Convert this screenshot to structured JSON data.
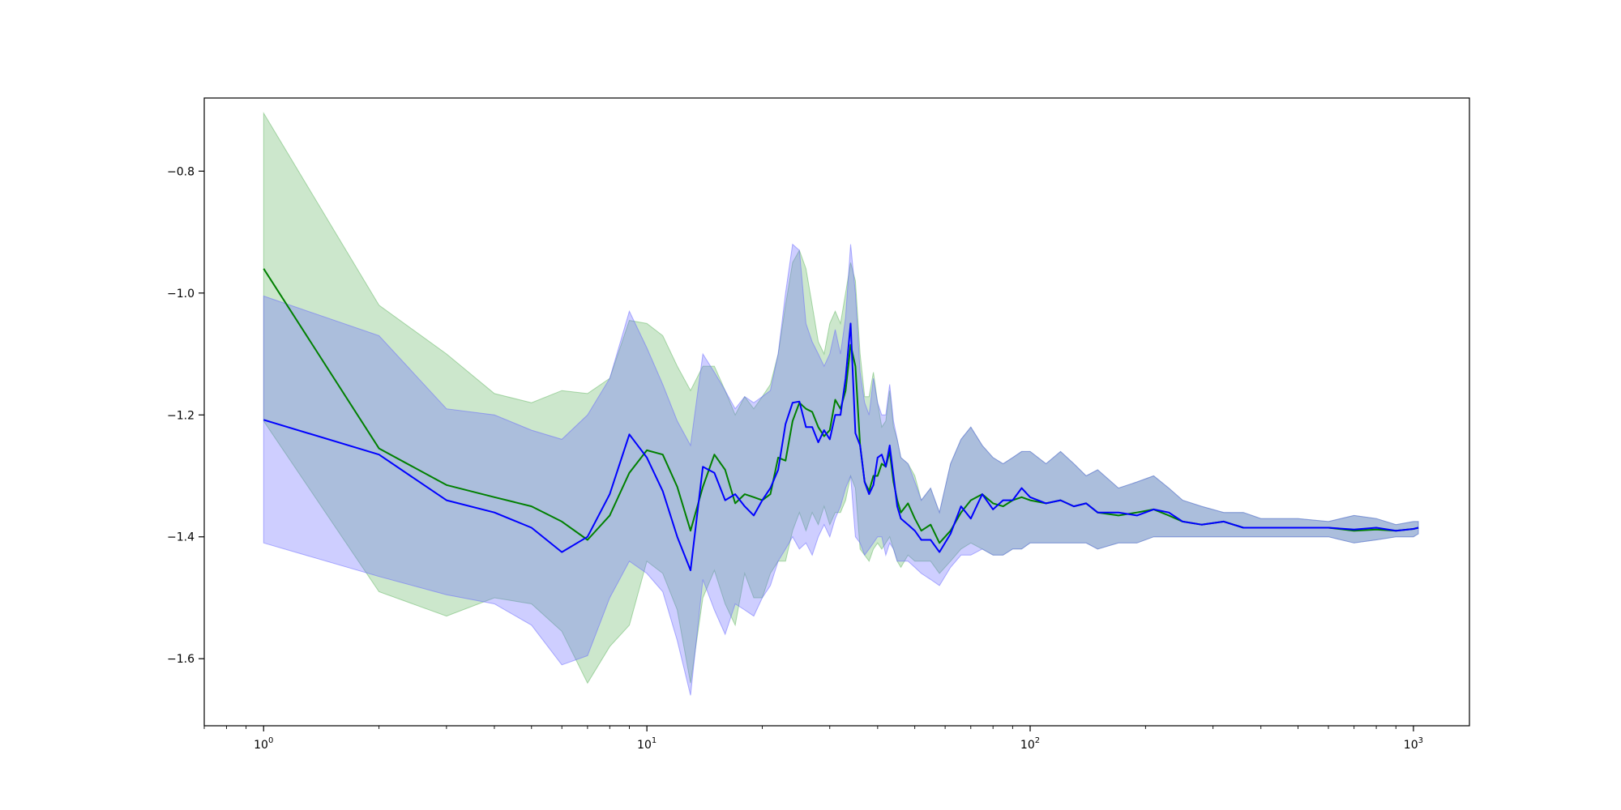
{
  "chart_data": {
    "type": "line",
    "title": "",
    "xlabel": "",
    "ylabel": "",
    "xscale": "log",
    "xlim": [
      0.7,
      1400
    ],
    "ylim": [
      -1.71,
      -0.68
    ],
    "grid": false,
    "x_ticks": [
      {
        "value": 1,
        "base": "10",
        "exp": "0"
      },
      {
        "value": 10,
        "base": "10",
        "exp": "1"
      },
      {
        "value": 100,
        "base": "10",
        "exp": "2"
      },
      {
        "value": 1000,
        "base": "10",
        "exp": "3"
      }
    ],
    "y_ticks": [
      {
        "value": -1.6,
        "label": "−1.6"
      },
      {
        "value": -1.4,
        "label": "−1.4"
      },
      {
        "value": -1.2,
        "label": "−1.2"
      },
      {
        "value": -1.0,
        "label": "−1.0"
      },
      {
        "value": -0.8,
        "label": "−0.8"
      }
    ],
    "colors": {
      "green_line": "#008000",
      "green_band": "#5fb55f",
      "blue_line": "#0000ff",
      "blue_band": "#6666ff"
    },
    "series": [
      {
        "x": [
          1,
          2,
          3,
          4,
          5,
          6,
          7,
          8,
          9,
          10,
          11,
          12,
          13,
          14,
          15,
          16,
          17,
          18,
          19,
          20,
          21,
          22,
          23,
          24,
          25,
          26,
          27,
          28,
          29,
          30,
          31,
          32,
          33,
          34,
          35,
          36,
          37,
          38,
          39,
          40,
          41,
          42,
          43,
          44,
          45,
          46,
          48,
          50,
          52,
          55,
          58,
          62,
          66,
          70,
          75,
          80,
          85,
          90,
          95,
          100,
          110,
          120,
          130,
          140,
          150,
          170,
          190,
          210,
          230,
          250,
          280,
          320,
          360,
          400,
          500,
          600,
          700,
          800,
          900,
          1000,
          1030
        ],
        "y": [
          -0.96,
          -1.255,
          -1.315,
          -1.335,
          -1.35,
          -1.375,
          -1.405,
          -1.365,
          -1.295,
          -1.258,
          -1.265,
          -1.318,
          -1.39,
          -1.318,
          -1.265,
          -1.29,
          -1.345,
          -1.33,
          -1.335,
          -1.34,
          -1.33,
          -1.27,
          -1.275,
          -1.21,
          -1.18,
          -1.19,
          -1.195,
          -1.22,
          -1.235,
          -1.225,
          -1.175,
          -1.19,
          -1.16,
          -1.085,
          -1.12,
          -1.25,
          -1.31,
          -1.325,
          -1.3,
          -1.3,
          -1.28,
          -1.285,
          -1.26,
          -1.31,
          -1.34,
          -1.36,
          -1.345,
          -1.37,
          -1.39,
          -1.38,
          -1.41,
          -1.39,
          -1.36,
          -1.34,
          -1.33,
          -1.345,
          -1.35,
          -1.34,
          -1.335,
          -1.34,
          -1.345,
          -1.34,
          -1.35,
          -1.345,
          -1.36,
          -1.365,
          -1.36,
          -1.355,
          -1.365,
          -1.375,
          -1.38,
          -1.375,
          -1.385,
          -1.385,
          -1.385,
          -1.385,
          -1.39,
          -1.388,
          -1.39,
          -1.387,
          -1.385
        ],
        "lower": [
          -1.21,
          -1.49,
          -1.53,
          -1.5,
          -1.51,
          -1.555,
          -1.64,
          -1.58,
          -1.545,
          -1.44,
          -1.46,
          -1.52,
          -1.64,
          -1.5,
          -1.455,
          -1.51,
          -1.545,
          -1.46,
          -1.5,
          -1.5,
          -1.46,
          -1.44,
          -1.44,
          -1.39,
          -1.36,
          -1.39,
          -1.36,
          -1.38,
          -1.35,
          -1.38,
          -1.36,
          -1.36,
          -1.34,
          -1.3,
          -1.32,
          -1.42,
          -1.43,
          -1.44,
          -1.42,
          -1.41,
          -1.42,
          -1.41,
          -1.4,
          -1.42,
          -1.44,
          -1.45,
          -1.43,
          -1.44,
          -1.44,
          -1.44,
          -1.46,
          -1.44,
          -1.42,
          -1.41,
          -1.42,
          -1.43,
          -1.43,
          -1.42,
          -1.42,
          -1.41,
          -1.41,
          -1.41,
          -1.41,
          -1.41,
          -1.42,
          -1.41,
          -1.41,
          -1.4,
          -1.4,
          -1.4,
          -1.4,
          -1.4,
          -1.4,
          -1.4,
          -1.4,
          -1.4,
          -1.41,
          -1.405,
          -1.4,
          -1.4,
          -1.395
        ],
        "upper": [
          -0.705,
          -1.02,
          -1.1,
          -1.165,
          -1.18,
          -1.16,
          -1.165,
          -1.14,
          -1.045,
          -1.05,
          -1.07,
          -1.12,
          -1.16,
          -1.12,
          -1.12,
          -1.16,
          -1.2,
          -1.17,
          -1.19,
          -1.17,
          -1.15,
          -1.1,
          -1.02,
          -0.95,
          -0.93,
          -0.96,
          -1.02,
          -1.08,
          -1.1,
          -1.05,
          -1.03,
          -1.05,
          -1.0,
          -0.95,
          -0.98,
          -1.1,
          -1.17,
          -1.17,
          -1.13,
          -1.18,
          -1.22,
          -1.21,
          -1.16,
          -1.22,
          -1.24,
          -1.27,
          -1.28,
          -1.3,
          -1.34,
          -1.32,
          -1.36,
          -1.28,
          -1.24,
          -1.22,
          -1.25,
          -1.27,
          -1.28,
          -1.27,
          -1.26,
          -1.26,
          -1.28,
          -1.26,
          -1.28,
          -1.3,
          -1.29,
          -1.32,
          -1.31,
          -1.3,
          -1.32,
          -1.34,
          -1.35,
          -1.36,
          -1.36,
          -1.37,
          -1.37,
          -1.375,
          -1.365,
          -1.37,
          -1.38,
          -1.375,
          -1.375
        ]
      },
      {
        "x": [
          1,
          2,
          3,
          4,
          5,
          6,
          7,
          8,
          9,
          10,
          11,
          12,
          13,
          14,
          15,
          16,
          17,
          18,
          19,
          20,
          21,
          22,
          23,
          24,
          25,
          26,
          27,
          28,
          29,
          30,
          31,
          32,
          33,
          34,
          35,
          36,
          37,
          38,
          39,
          40,
          41,
          42,
          43,
          44,
          45,
          46,
          48,
          50,
          52,
          55,
          58,
          62,
          66,
          70,
          75,
          80,
          85,
          90,
          95,
          100,
          110,
          120,
          130,
          140,
          150,
          170,
          190,
          210,
          230,
          250,
          280,
          320,
          360,
          400,
          500,
          600,
          700,
          800,
          900,
          1000,
          1030
        ],
        "y": [
          -1.208,
          -1.265,
          -1.34,
          -1.36,
          -1.385,
          -1.425,
          -1.4,
          -1.33,
          -1.232,
          -1.27,
          -1.325,
          -1.4,
          -1.455,
          -1.285,
          -1.295,
          -1.34,
          -1.33,
          -1.35,
          -1.365,
          -1.34,
          -1.32,
          -1.29,
          -1.215,
          -1.18,
          -1.178,
          -1.22,
          -1.22,
          -1.245,
          -1.225,
          -1.24,
          -1.2,
          -1.2,
          -1.14,
          -1.05,
          -1.23,
          -1.25,
          -1.31,
          -1.33,
          -1.315,
          -1.27,
          -1.265,
          -1.285,
          -1.25,
          -1.3,
          -1.35,
          -1.37,
          -1.38,
          -1.39,
          -1.405,
          -1.405,
          -1.425,
          -1.395,
          -1.35,
          -1.37,
          -1.33,
          -1.355,
          -1.34,
          -1.34,
          -1.32,
          -1.335,
          -1.345,
          -1.34,
          -1.35,
          -1.345,
          -1.36,
          -1.36,
          -1.365,
          -1.355,
          -1.36,
          -1.375,
          -1.38,
          -1.375,
          -1.385,
          -1.385,
          -1.385,
          -1.385,
          -1.388,
          -1.385,
          -1.39,
          -1.387,
          -1.385
        ],
        "lower": [
          -1.41,
          -1.465,
          -1.495,
          -1.51,
          -1.545,
          -1.61,
          -1.595,
          -1.5,
          -1.44,
          -1.46,
          -1.49,
          -1.57,
          -1.66,
          -1.47,
          -1.52,
          -1.56,
          -1.51,
          -1.52,
          -1.53,
          -1.5,
          -1.48,
          -1.44,
          -1.42,
          -1.4,
          -1.42,
          -1.41,
          -1.43,
          -1.4,
          -1.38,
          -1.4,
          -1.37,
          -1.35,
          -1.32,
          -1.3,
          -1.4,
          -1.41,
          -1.43,
          -1.42,
          -1.41,
          -1.4,
          -1.4,
          -1.43,
          -1.41,
          -1.42,
          -1.44,
          -1.44,
          -1.44,
          -1.45,
          -1.46,
          -1.47,
          -1.48,
          -1.45,
          -1.43,
          -1.43,
          -1.42,
          -1.43,
          -1.43,
          -1.42,
          -1.42,
          -1.41,
          -1.41,
          -1.41,
          -1.41,
          -1.41,
          -1.42,
          -1.41,
          -1.41,
          -1.4,
          -1.4,
          -1.4,
          -1.4,
          -1.4,
          -1.4,
          -1.4,
          -1.4,
          -1.4,
          -1.41,
          -1.405,
          -1.4,
          -1.4,
          -1.395
        ],
        "upper": [
          -1.005,
          -1.07,
          -1.19,
          -1.2,
          -1.225,
          -1.24,
          -1.2,
          -1.14,
          -1.03,
          -1.09,
          -1.15,
          -1.21,
          -1.25,
          -1.1,
          -1.13,
          -1.16,
          -1.19,
          -1.17,
          -1.18,
          -1.17,
          -1.16,
          -1.1,
          -1.0,
          -0.92,
          -0.93,
          -1.05,
          -1.08,
          -1.1,
          -1.12,
          -1.1,
          -1.06,
          -1.1,
          -1.04,
          -0.92,
          -1.0,
          -1.13,
          -1.18,
          -1.2,
          -1.14,
          -1.18,
          -1.2,
          -1.2,
          -1.15,
          -1.21,
          -1.24,
          -1.27,
          -1.28,
          -1.31,
          -1.34,
          -1.32,
          -1.36,
          -1.28,
          -1.24,
          -1.22,
          -1.25,
          -1.27,
          -1.28,
          -1.27,
          -1.26,
          -1.26,
          -1.28,
          -1.26,
          -1.28,
          -1.3,
          -1.29,
          -1.32,
          -1.31,
          -1.3,
          -1.32,
          -1.34,
          -1.35,
          -1.36,
          -1.36,
          -1.37,
          -1.37,
          -1.375,
          -1.365,
          -1.37,
          -1.38,
          -1.375,
          -1.375
        ]
      }
    ]
  }
}
